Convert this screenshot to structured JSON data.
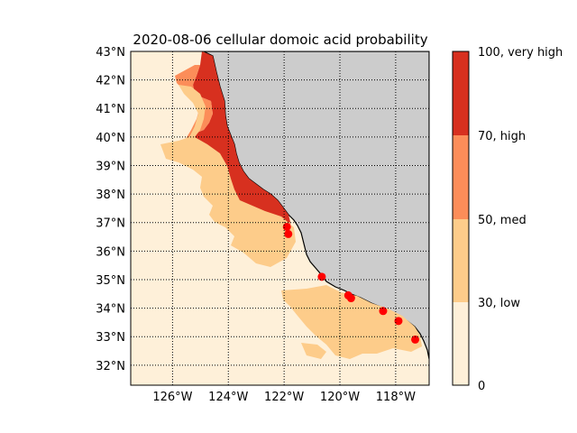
{
  "title": "2020-08-06 cellular domoic acid probability",
  "lat_labels": [
    "43°N",
    "42°N",
    "41°N",
    "40°N",
    "39°N",
    "38°N",
    "37°N",
    "36°N",
    "35°N",
    "34°N",
    "33°N",
    "32°N"
  ],
  "lon_labels": [
    "126°W",
    "124°W",
    "122°W",
    "120°W",
    "118°W"
  ],
  "colorbar": {
    "labels": [
      "100, very high",
      "70, high",
      "50, med",
      "30, low",
      "0"
    ],
    "levels": [
      {
        "name": "very high",
        "color": "#d7301f"
      },
      {
        "name": "high",
        "color": "#fc8d59"
      },
      {
        "name": "med",
        "color": "#fdcc8a"
      },
      {
        "name": "low",
        "color": "#fef0d9"
      }
    ]
  },
  "colors": {
    "land": "#cccccc",
    "sea_base": "#fef0d9",
    "site_marker": "#ff0000"
  },
  "chart_data": {
    "type": "map",
    "extent": {
      "lon": [
        -127.5,
        -116.8
      ],
      "lat": [
        31.3,
        43.0
      ]
    },
    "sites": [
      {
        "lon": -121.9,
        "lat": 36.85
      },
      {
        "lon": -121.85,
        "lat": 36.6
      },
      {
        "lon": -120.65,
        "lat": 35.1
      },
      {
        "lon": -119.7,
        "lat": 34.45
      },
      {
        "lon": -119.6,
        "lat": 34.35
      },
      {
        "lon": -118.45,
        "lat": 33.9
      },
      {
        "lon": -117.9,
        "lat": 33.55
      },
      {
        "lon": -117.3,
        "lat": 32.9
      }
    ]
  }
}
